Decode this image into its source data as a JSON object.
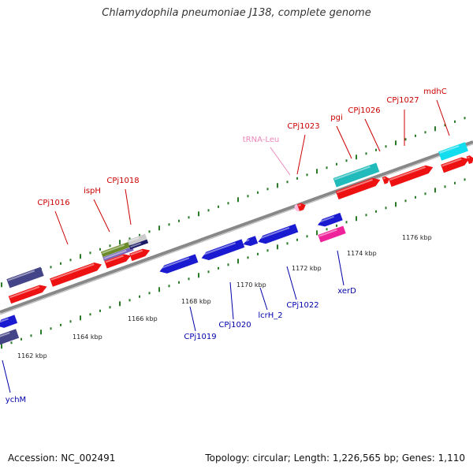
{
  "header": {
    "title": "Chlamydophila pneumoniae J138, complete genome"
  },
  "footer": {
    "accession": "Accession: NC_002491",
    "summary": "Topology: circular; Length: 1,226,565 bp; Genes: 1,110"
  },
  "colors": {
    "forward_label": "#cc0000",
    "reverse_label": "#0000aa",
    "trna_label": "#ee88bb",
    "backbone": "#888888",
    "tick": "#2a7a2a"
  },
  "kbp_labels": [
    "1162 kbp",
    "1164 kbp",
    "1166 kbp",
    "1168 kbp",
    "1170 kbp",
    "1172 kbp",
    "1174 kbp",
    "1176 kbp"
  ],
  "gene_labels": {
    "forward": [
      "CPj1016",
      "ispH",
      "CPj1018",
      "tRNA-Leu",
      "CPj1023",
      "pgi",
      "CPj1026",
      "CPj1027",
      "mdhC"
    ],
    "reverse": [
      "ychM",
      "CPj1019",
      "CPj1020",
      "lcrH_2",
      "CPj1022",
      "xerD"
    ]
  }
}
